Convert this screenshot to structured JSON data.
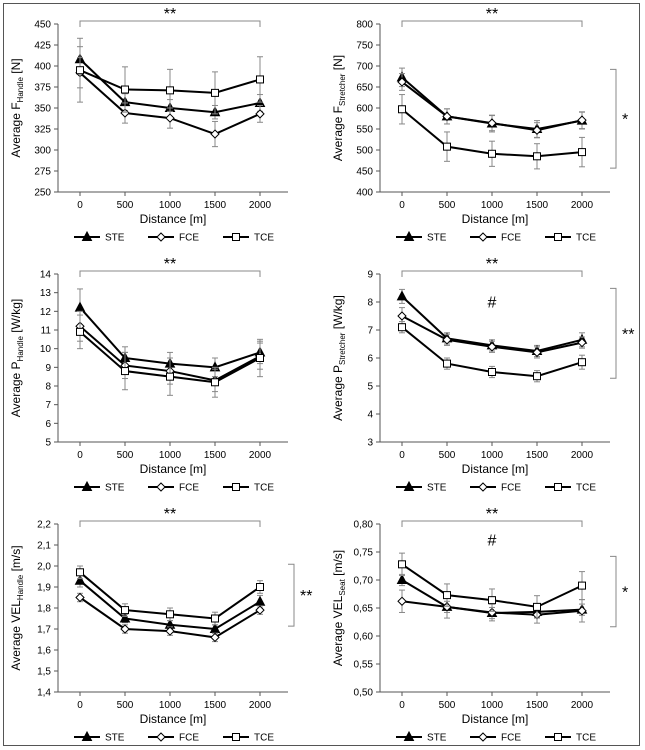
{
  "chart_data": [
    {
      "type": "line",
      "panel": "a",
      "ylabel_main": "Average F",
      "ylabel_sub": "Handle",
      "ylabel_unit": " [N]",
      "xlabel": "Distance [m]",
      "categories": [
        "0",
        "500",
        "1000",
        "1500",
        "2000"
      ],
      "x": [
        0,
        500,
        1000,
        1500,
        2000
      ],
      "ylim": [
        250,
        450
      ],
      "yticks": [
        250,
        275,
        300,
        325,
        350,
        375,
        400,
        425,
        450
      ],
      "ytick_labels": [
        "250",
        "275",
        "300",
        "325",
        "350",
        "375",
        "400",
        "425",
        "450"
      ],
      "series": [
        {
          "name": "STE",
          "marker": "triangle",
          "values": [
            408,
            357,
            350,
            345,
            356
          ],
          "err": [
            15,
            10,
            10,
            8,
            10
          ]
        },
        {
          "name": "FCE",
          "marker": "diamond",
          "values": [
            392,
            344,
            338,
            319,
            343
          ],
          "err": [
            18,
            12,
            12,
            15,
            10
          ]
        },
        {
          "name": "TCE",
          "marker": "square",
          "values": [
            395,
            372,
            371,
            368,
            384
          ],
          "err": [
            38,
            27,
            25,
            25,
            27
          ]
        }
      ],
      "top_bracket": "**",
      "right_bracket": ""
    },
    {
      "type": "line",
      "panel": "b",
      "ylabel_main": "Average F",
      "ylabel_sub": "Stretcher",
      "ylabel_unit": " [N]",
      "xlabel": "Distance [m]",
      "categories": [
        "0",
        "500",
        "1000",
        "1500",
        "2000"
      ],
      "x": [
        0,
        500,
        1000,
        1500,
        2000
      ],
      "ylim": [
        400,
        800
      ],
      "yticks": [
        400,
        450,
        500,
        550,
        600,
        650,
        700,
        750,
        800
      ],
      "ytick_labels": [
        "400",
        "450",
        "500",
        "550",
        "600",
        "650",
        "700",
        "750",
        "800"
      ],
      "series": [
        {
          "name": "STE",
          "marker": "triangle",
          "values": [
            673,
            580,
            563,
            550,
            570
          ],
          "err": [
            22,
            18,
            20,
            20,
            20
          ]
        },
        {
          "name": "FCE",
          "marker": "diamond",
          "values": [
            662,
            580,
            564,
            547,
            571
          ],
          "err": [
            20,
            18,
            18,
            18,
            20
          ]
        },
        {
          "name": "TCE",
          "marker": "square",
          "values": [
            597,
            508,
            491,
            485,
            495
          ],
          "err": [
            35,
            35,
            30,
            30,
            35
          ]
        }
      ],
      "top_bracket": "**",
      "right_bracket": "*"
    },
    {
      "type": "line",
      "panel": "c",
      "ylabel_main": "Average P",
      "ylabel_sub": "Handle",
      "ylabel_unit": " [W/kg]",
      "xlabel": "Distance [m]",
      "categories": [
        "0",
        "500",
        "1000",
        "1500",
        "2000"
      ],
      "x": [
        0,
        500,
        1000,
        1500,
        2000
      ],
      "ylim": [
        5,
        14
      ],
      "yticks": [
        5,
        6,
        7,
        8,
        9,
        10,
        11,
        12,
        13,
        14
      ],
      "ytick_labels": [
        "5",
        "6",
        "7",
        "8",
        "9",
        "10",
        "11",
        "12",
        "13",
        "14"
      ],
      "series": [
        {
          "name": "STE",
          "marker": "triangle",
          "values": [
            12.2,
            9.5,
            9.2,
            9.0,
            9.8
          ],
          "err": [
            1.0,
            0.6,
            0.6,
            0.5,
            0.6
          ]
        },
        {
          "name": "FCE",
          "marker": "diamond",
          "values": [
            11.2,
            9.1,
            8.8,
            8.3,
            9.6
          ],
          "err": [
            0.8,
            0.7,
            0.7,
            0.6,
            0.7
          ]
        },
        {
          "name": "TCE",
          "marker": "square",
          "values": [
            10.9,
            8.8,
            8.5,
            8.2,
            9.5
          ],
          "err": [
            0.9,
            1.0,
            1.0,
            0.8,
            1.0
          ]
        }
      ],
      "top_bracket": "**",
      "right_bracket": ""
    },
    {
      "type": "line",
      "panel": "d",
      "ylabel_main": "Average P",
      "ylabel_sub": "Stretcher",
      "ylabel_unit": " [W/kg]",
      "xlabel": "Distance [m]",
      "categories": [
        "0",
        "500",
        "1000",
        "1500",
        "2000"
      ],
      "x": [
        0,
        500,
        1000,
        1500,
        2000
      ],
      "ylim": [
        3,
        9
      ],
      "yticks": [
        3,
        4,
        5,
        6,
        7,
        8,
        9
      ],
      "ytick_labels": [
        "3",
        "4",
        "5",
        "6",
        "7",
        "8",
        "9"
      ],
      "series": [
        {
          "name": "STE",
          "marker": "triangle",
          "values": [
            8.2,
            6.7,
            6.45,
            6.25,
            6.65
          ],
          "err": [
            0.25,
            0.2,
            0.2,
            0.2,
            0.25
          ]
        },
        {
          "name": "FCE",
          "marker": "diamond",
          "values": [
            7.5,
            6.65,
            6.4,
            6.2,
            6.55
          ],
          "err": [
            0.3,
            0.2,
            0.2,
            0.2,
            0.2
          ]
        },
        {
          "name": "TCE",
          "marker": "square",
          "values": [
            7.1,
            5.8,
            5.5,
            5.35,
            5.85
          ],
          "err": [
            0.2,
            0.2,
            0.2,
            0.2,
            0.25
          ]
        }
      ],
      "top_bracket": "**",
      "right_bracket": "**",
      "annotation": "#",
      "annotation_x": 1000,
      "annotation_y": 7.8
    },
    {
      "type": "line",
      "panel": "e",
      "ylabel_main": "Average VEL",
      "ylabel_sub": "Handle",
      "ylabel_unit": " [m/s]",
      "xlabel": "Distance [m]",
      "categories": [
        "0",
        "500",
        "1000",
        "1500",
        "2000"
      ],
      "x": [
        0,
        500,
        1000,
        1500,
        2000
      ],
      "ylim": [
        1.4,
        2.2
      ],
      "yticks": [
        1.4,
        1.5,
        1.6,
        1.7,
        1.8,
        1.9,
        2.0,
        2.1,
        2.2
      ],
      "ytick_labels": [
        "1,4",
        "1,5",
        "1,6",
        "1,7",
        "1,8",
        "1,9",
        "2,0",
        "2,1",
        "2,2"
      ],
      "series": [
        {
          "name": "STE",
          "marker": "triangle",
          "values": [
            1.93,
            1.75,
            1.72,
            1.7,
            1.83
          ],
          "err": [
            0.03,
            0.02,
            0.02,
            0.02,
            0.03
          ]
        },
        {
          "name": "FCE",
          "marker": "diamond",
          "values": [
            1.85,
            1.7,
            1.69,
            1.66,
            1.79
          ],
          "err": [
            0.02,
            0.02,
            0.02,
            0.02,
            0.02
          ]
        },
        {
          "name": "TCE",
          "marker": "square",
          "values": [
            1.97,
            1.79,
            1.77,
            1.75,
            1.9
          ],
          "err": [
            0.03,
            0.03,
            0.03,
            0.03,
            0.03
          ]
        }
      ],
      "top_bracket": "**",
      "right_bracket": "**"
    },
    {
      "type": "line",
      "panel": "f",
      "ylabel_main": "Average VEL",
      "ylabel_sub": "Seat",
      "ylabel_unit": " [m/s]",
      "xlabel": "Distance [m]",
      "categories": [
        "0",
        "500",
        "1000",
        "1500",
        "2000"
      ],
      "x": [
        0,
        500,
        1000,
        1500,
        2000
      ],
      "ylim": [
        0.5,
        0.8
      ],
      "yticks": [
        0.5,
        0.55,
        0.6,
        0.65,
        0.7,
        0.75,
        0.8
      ],
      "ytick_labels": [
        "0,50",
        "0,55",
        "0,60",
        "0,65",
        "0,70",
        "0,75",
        "0,80"
      ],
      "series": [
        {
          "name": "STE",
          "marker": "triangle",
          "values": [
            0.7,
            0.652,
            0.641,
            0.643,
            0.647
          ],
          "err": [
            0.01,
            0.01,
            0.01,
            0.01,
            0.01
          ]
        },
        {
          "name": "FCE",
          "marker": "diamond",
          "values": [
            0.662,
            0.652,
            0.642,
            0.638,
            0.645
          ],
          "err": [
            0.02,
            0.02,
            0.015,
            0.015,
            0.02
          ]
        },
        {
          "name": "TCE",
          "marker": "square",
          "values": [
            0.728,
            0.673,
            0.664,
            0.652,
            0.69
          ],
          "err": [
            0.02,
            0.02,
            0.02,
            0.02,
            0.025
          ]
        }
      ],
      "top_bracket": "**",
      "right_bracket": "*",
      "annotation": "#",
      "annotation_x": 1000,
      "annotation_y": 0.762
    }
  ]
}
